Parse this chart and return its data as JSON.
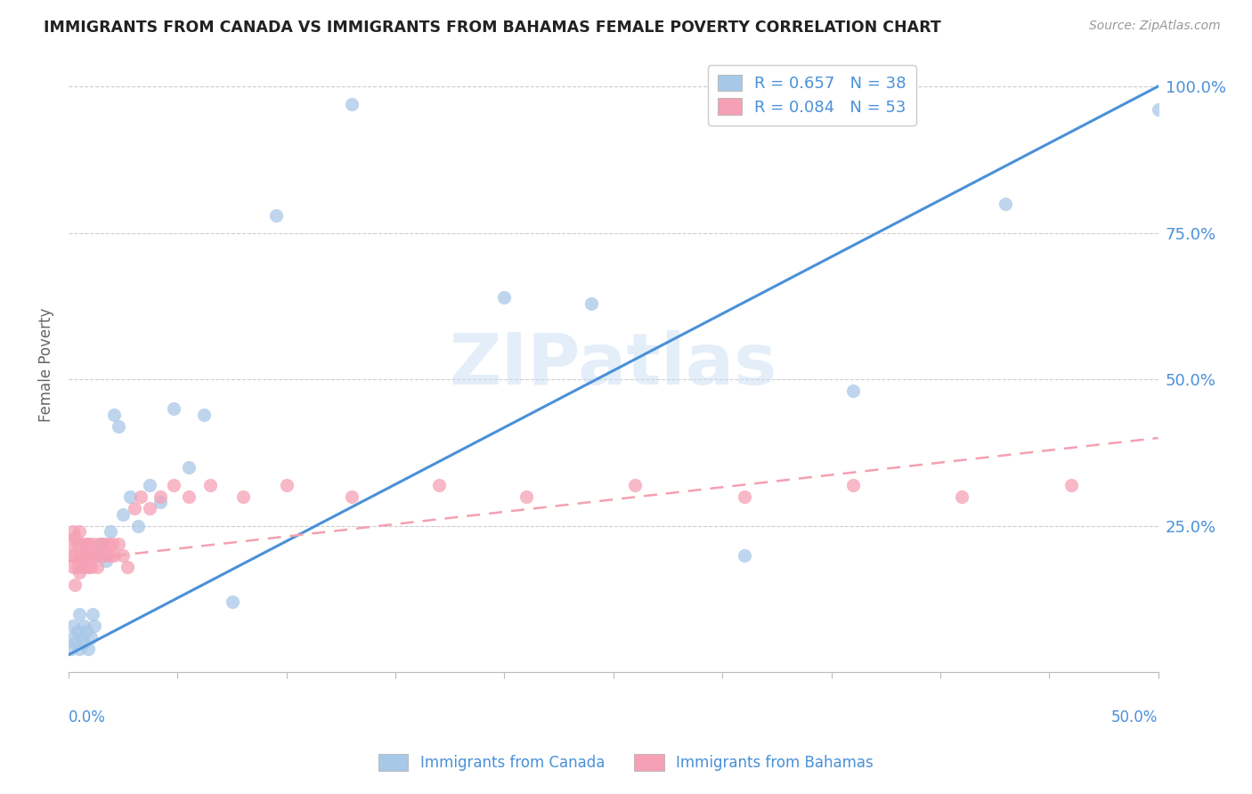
{
  "title": "IMMIGRANTS FROM CANADA VS IMMIGRANTS FROM BAHAMAS FEMALE POVERTY CORRELATION CHART",
  "source": "Source: ZipAtlas.com",
  "ylabel": "Female Poverty",
  "xlim": [
    0.0,
    0.5
  ],
  "ylim": [
    0.0,
    1.05
  ],
  "canada_R": 0.657,
  "canada_N": 38,
  "bahamas_R": 0.084,
  "bahamas_N": 53,
  "canada_color": "#a8c8e8",
  "bahamas_color": "#f5a0b5",
  "canada_line_color": "#4a90d9",
  "bahamas_line_color": "#f4a0b0",
  "watermark": "ZIPatlas",
  "canada_x": [
    0.001,
    0.002,
    0.002,
    0.003,
    0.004,
    0.005,
    0.005,
    0.006,
    0.007,
    0.007,
    0.008,
    0.009,
    0.01,
    0.011,
    0.012,
    0.013,
    0.015,
    0.017,
    0.019,
    0.021,
    0.023,
    0.025,
    0.028,
    0.032,
    0.037,
    0.042,
    0.048,
    0.055,
    0.062,
    0.075,
    0.095,
    0.13,
    0.2,
    0.24,
    0.31,
    0.36,
    0.43,
    0.5
  ],
  "canada_y": [
    0.04,
    0.06,
    0.08,
    0.05,
    0.07,
    0.04,
    0.1,
    0.06,
    0.08,
    0.05,
    0.07,
    0.04,
    0.06,
    0.1,
    0.08,
    0.2,
    0.22,
    0.19,
    0.24,
    0.44,
    0.42,
    0.27,
    0.3,
    0.25,
    0.32,
    0.29,
    0.45,
    0.35,
    0.44,
    0.12,
    0.78,
    0.97,
    0.64,
    0.63,
    0.2,
    0.48,
    0.8,
    0.96
  ],
  "bahamas_x": [
    0.001,
    0.001,
    0.002,
    0.002,
    0.003,
    0.003,
    0.003,
    0.004,
    0.004,
    0.005,
    0.005,
    0.005,
    0.006,
    0.006,
    0.007,
    0.007,
    0.008,
    0.008,
    0.009,
    0.009,
    0.01,
    0.01,
    0.011,
    0.012,
    0.013,
    0.014,
    0.015,
    0.016,
    0.017,
    0.018,
    0.019,
    0.02,
    0.021,
    0.023,
    0.025,
    0.027,
    0.03,
    0.033,
    0.037,
    0.042,
    0.048,
    0.055,
    0.065,
    0.08,
    0.1,
    0.13,
    0.17,
    0.21,
    0.26,
    0.31,
    0.36,
    0.41,
    0.46
  ],
  "bahamas_y": [
    0.2,
    0.22,
    0.18,
    0.24,
    0.15,
    0.2,
    0.23,
    0.18,
    0.22,
    0.2,
    0.17,
    0.24,
    0.19,
    0.22,
    0.2,
    0.18,
    0.22,
    0.2,
    0.18,
    0.22,
    0.2,
    0.18,
    0.22,
    0.2,
    0.18,
    0.22,
    0.2,
    0.22,
    0.2,
    0.22,
    0.2,
    0.22,
    0.2,
    0.22,
    0.2,
    0.18,
    0.28,
    0.3,
    0.28,
    0.3,
    0.32,
    0.3,
    0.32,
    0.3,
    0.32,
    0.3,
    0.32,
    0.3,
    0.32,
    0.3,
    0.32,
    0.3,
    0.32
  ],
  "ytick_positions": [
    0.0,
    0.25,
    0.5,
    0.75,
    1.0
  ],
  "ytick_labels": [
    "",
    "25.0%",
    "50.0%",
    "75.0%",
    "100.0%"
  ]
}
